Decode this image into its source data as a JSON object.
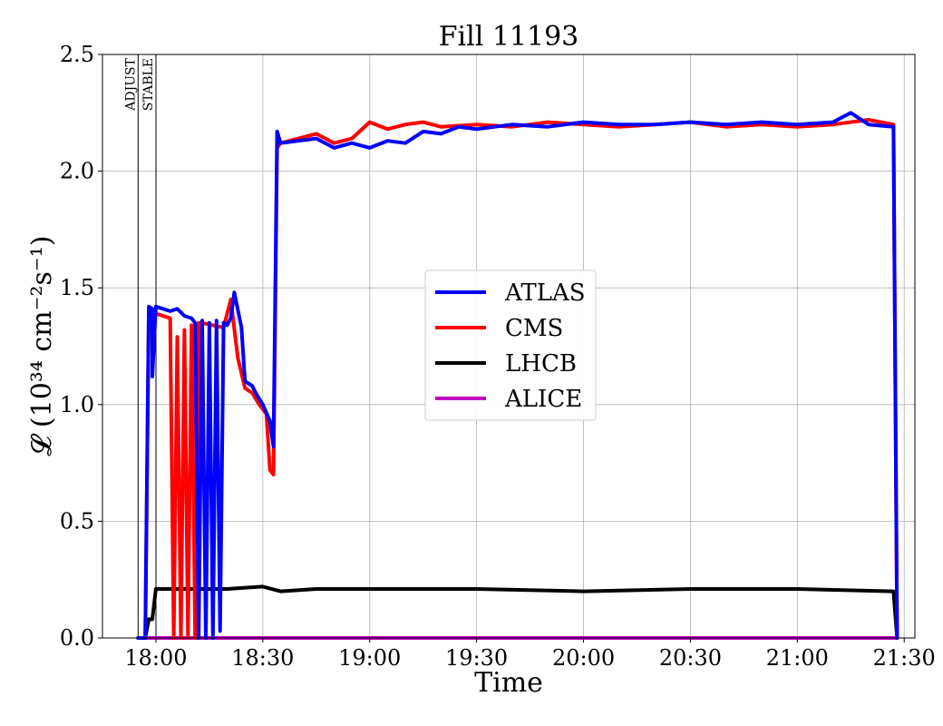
{
  "chart_data": {
    "type": "line",
    "title": "Fill 11193",
    "xlabel": "Time",
    "ylabel": "𝓛 (10³⁴ cm⁻²s⁻¹)",
    "ylim": [
      0,
      2.5
    ],
    "xlim": [
      "17:45",
      "21:33"
    ],
    "x_ticks": [
      "18:00",
      "18:30",
      "19:00",
      "19:30",
      "20:00",
      "20:30",
      "21:00",
      "21:30"
    ],
    "y_ticks": [
      "0.0",
      "0.5",
      "1.0",
      "1.5",
      "2.0",
      "2.5"
    ],
    "grid": true,
    "legend_position": "center",
    "markers": [
      {
        "label": "ADJUST",
        "time": "17:55"
      },
      {
        "label": "STABLE",
        "time": "17:59"
      }
    ],
    "series": [
      {
        "name": "ATLAS",
        "color": "#0000ff",
        "points": [
          [
            "17:55",
            0.0
          ],
          [
            "17:57",
            0.0
          ],
          [
            "17:58",
            1.42
          ],
          [
            "17:59",
            1.41
          ],
          [
            "17:59",
            1.12
          ],
          [
            "18:00",
            1.42
          ],
          [
            "18:04",
            1.4
          ],
          [
            "18:06",
            1.41
          ],
          [
            "18:08",
            1.38
          ],
          [
            "18:10",
            1.37
          ],
          [
            "18:11",
            1.35
          ],
          [
            "18:12",
            0.0
          ],
          [
            "18:13",
            1.36
          ],
          [
            "18:14",
            0.0
          ],
          [
            "18:15",
            1.35
          ],
          [
            "18:16",
            0.0
          ],
          [
            "18:17",
            1.36
          ],
          [
            "18:18",
            0.03
          ],
          [
            "18:19",
            1.35
          ],
          [
            "18:20",
            1.34
          ],
          [
            "18:21",
            1.37
          ],
          [
            "18:22",
            1.48
          ],
          [
            "18:24",
            1.33
          ],
          [
            "18:25",
            1.1
          ],
          [
            "18:27",
            1.08
          ],
          [
            "18:28",
            1.05
          ],
          [
            "18:30",
            1.0
          ],
          [
            "18:32",
            0.93
          ],
          [
            "18:33",
            0.82
          ],
          [
            "18:34",
            2.17
          ],
          [
            "18:35",
            2.12
          ],
          [
            "18:40",
            2.13
          ],
          [
            "18:45",
            2.14
          ],
          [
            "18:50",
            2.1
          ],
          [
            "18:55",
            2.12
          ],
          [
            "19:00",
            2.1
          ],
          [
            "19:05",
            2.13
          ],
          [
            "19:10",
            2.12
          ],
          [
            "19:15",
            2.17
          ],
          [
            "19:20",
            2.16
          ],
          [
            "19:25",
            2.19
          ],
          [
            "19:30",
            2.18
          ],
          [
            "19:40",
            2.2
          ],
          [
            "19:50",
            2.19
          ],
          [
            "20:00",
            2.21
          ],
          [
            "20:10",
            2.2
          ],
          [
            "20:20",
            2.2
          ],
          [
            "20:30",
            2.21
          ],
          [
            "20:40",
            2.2
          ],
          [
            "20:50",
            2.21
          ],
          [
            "21:00",
            2.2
          ],
          [
            "21:10",
            2.21
          ],
          [
            "21:15",
            2.25
          ],
          [
            "21:20",
            2.2
          ],
          [
            "21:27",
            2.19
          ],
          [
            "21:28",
            0.0
          ]
        ]
      },
      {
        "name": "CMS",
        "color": "#ff0000",
        "points": [
          [
            "17:55",
            0.0
          ],
          [
            "17:57",
            0.0
          ],
          [
            "17:58",
            1.39
          ],
          [
            "17:59",
            1.38
          ],
          [
            "18:00",
            1.39
          ],
          [
            "18:04",
            1.37
          ],
          [
            "18:05",
            0.0
          ],
          [
            "18:06",
            1.29
          ],
          [
            "18:07",
            0.0
          ],
          [
            "18:08",
            1.32
          ],
          [
            "18:09",
            0.0
          ],
          [
            "18:10",
            1.34
          ],
          [
            "18:11",
            0.0
          ],
          [
            "18:12",
            1.35
          ],
          [
            "18:13",
            1.35
          ],
          [
            "18:16",
            1.34
          ],
          [
            "18:19",
            1.33
          ],
          [
            "18:21",
            1.45
          ],
          [
            "18:23",
            1.2
          ],
          [
            "18:25",
            1.07
          ],
          [
            "18:27",
            1.05
          ],
          [
            "18:29",
            1.0
          ],
          [
            "18:31",
            0.96
          ],
          [
            "18:32",
            0.72
          ],
          [
            "18:33",
            0.7
          ],
          [
            "18:34",
            2.1
          ],
          [
            "18:35",
            2.12
          ],
          [
            "18:40",
            2.14
          ],
          [
            "18:45",
            2.16
          ],
          [
            "18:50",
            2.12
          ],
          [
            "18:55",
            2.14
          ],
          [
            "19:00",
            2.21
          ],
          [
            "19:05",
            2.18
          ],
          [
            "19:10",
            2.2
          ],
          [
            "19:15",
            2.21
          ],
          [
            "19:20",
            2.19
          ],
          [
            "19:30",
            2.2
          ],
          [
            "19:40",
            2.19
          ],
          [
            "19:50",
            2.21
          ],
          [
            "20:00",
            2.2
          ],
          [
            "20:10",
            2.19
          ],
          [
            "20:20",
            2.2
          ],
          [
            "20:30",
            2.21
          ],
          [
            "20:40",
            2.19
          ],
          [
            "20:50",
            2.2
          ],
          [
            "21:00",
            2.19
          ],
          [
            "21:10",
            2.2
          ],
          [
            "21:20",
            2.22
          ],
          [
            "21:27",
            2.2
          ],
          [
            "21:28",
            0.0
          ]
        ]
      },
      {
        "name": "LHCB",
        "color": "#000000",
        "points": [
          [
            "17:55",
            0.0
          ],
          [
            "17:57",
            0.0
          ],
          [
            "17:58",
            0.08
          ],
          [
            "17:59",
            0.08
          ],
          [
            "18:00",
            0.21
          ],
          [
            "18:10",
            0.21
          ],
          [
            "18:20",
            0.21
          ],
          [
            "18:30",
            0.22
          ],
          [
            "18:35",
            0.2
          ],
          [
            "18:45",
            0.21
          ],
          [
            "19:00",
            0.21
          ],
          [
            "19:30",
            0.21
          ],
          [
            "20:00",
            0.2
          ],
          [
            "20:30",
            0.21
          ],
          [
            "21:00",
            0.21
          ],
          [
            "21:27",
            0.2
          ],
          [
            "21:28",
            0.0
          ]
        ]
      },
      {
        "name": "ALICE",
        "color": "#bf00bf",
        "points": [
          [
            "17:55",
            0.0
          ],
          [
            "21:28",
            0.0
          ]
        ]
      }
    ]
  }
}
